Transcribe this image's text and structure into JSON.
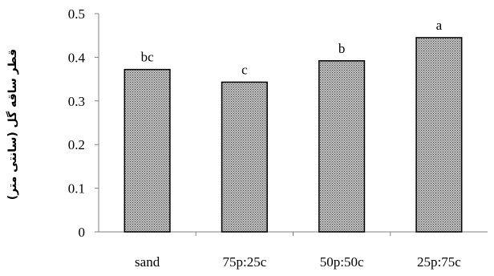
{
  "chart_data": {
    "type": "bar",
    "title": "",
    "xlabel": "",
    "ylabel": "قطر ساقه گل (سانتی متر)",
    "categories": [
      "sand",
      "75p:25c",
      "50p:50c",
      "25p:75c"
    ],
    "values": [
      0.372,
      0.343,
      0.392,
      0.445
    ],
    "data_labels": [
      "bc",
      "c",
      "b",
      "a"
    ],
    "ylim": [
      0,
      0.5
    ],
    "yticks": [
      0,
      0.1,
      0.2,
      0.3,
      0.4,
      0.5
    ],
    "ytick_labels": [
      "0",
      "0.1",
      "0.2",
      "0.3",
      "0.4",
      "0.5"
    ],
    "grid": false,
    "legend": "none",
    "bar_fill_color": "#9a9a9a",
    "bar_stroke_color": "#000000",
    "axis_color": "#808080"
  }
}
